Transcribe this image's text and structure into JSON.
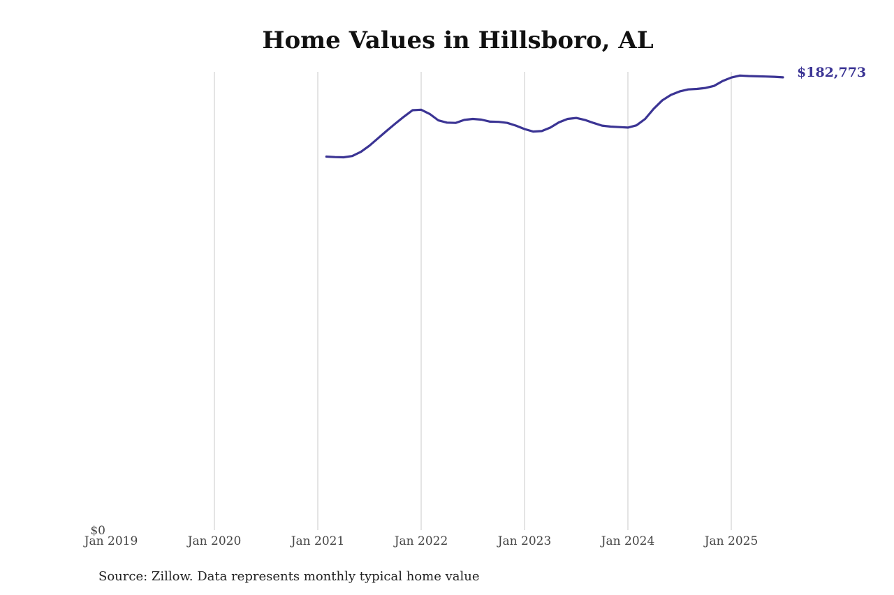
{
  "chart_data": {
    "type": "line",
    "title": "Home Values in Hillsboro, AL",
    "source": "Source: Zillow. Data represents monthly typical home value",
    "colors": {
      "line": "#3b3494",
      "grid": "#c8c8c8"
    },
    "y_axis": {
      "min": 0,
      "max": 185000,
      "tick_labels": [
        "$0"
      ],
      "tick_values": [
        0
      ]
    },
    "x_axis": {
      "tick_labels": [
        "Jan 2019",
        "Jan 2020",
        "Jan 2021",
        "Jan 2022",
        "Jan 2023",
        "Jan 2024",
        "Jan 2025"
      ],
      "tick_values": [
        "2019-01",
        "2020-01",
        "2021-01",
        "2022-01",
        "2023-01",
        "2024-01",
        "2025-01"
      ]
    },
    "grid": "vertical",
    "end_label": "$182,773",
    "series": [
      {
        "x": [
          "2021-02",
          "2021-03",
          "2021-04",
          "2021-05",
          "2021-06",
          "2021-07",
          "2021-08",
          "2021-09",
          "2021-10",
          "2021-11",
          "2021-12",
          "2022-01",
          "2022-02",
          "2022-03",
          "2022-04",
          "2022-05",
          "2022-06",
          "2022-07",
          "2022-08",
          "2022-09",
          "2022-10",
          "2022-11",
          "2022-12",
          "2023-01",
          "2023-02",
          "2023-03",
          "2023-04",
          "2023-05",
          "2023-06",
          "2023-07",
          "2023-08",
          "2023-09",
          "2023-10",
          "2023-11",
          "2023-12",
          "2024-01",
          "2024-02",
          "2024-03",
          "2024-04",
          "2024-05",
          "2024-06",
          "2024-07",
          "2024-08",
          "2024-09",
          "2024-10",
          "2024-11",
          "2024-12",
          "2025-01",
          "2025-02",
          "2025-03",
          "2025-04",
          "2025-05",
          "2025-06",
          "2025-07"
        ],
        "values": [
          150800,
          150600,
          150500,
          151000,
          152700,
          155200,
          158200,
          161200,
          164100,
          166900,
          169500,
          169700,
          168000,
          165400,
          164500,
          164400,
          165600,
          166000,
          165700,
          164900,
          164800,
          164400,
          163300,
          161900,
          160900,
          161100,
          162500,
          164600,
          166000,
          166400,
          165600,
          164400,
          163300,
          162900,
          162700,
          162500,
          163400,
          166000,
          170100,
          173500,
          175700,
          177100,
          177900,
          178100,
          178500,
          179300,
          181300,
          182700,
          183500,
          183300,
          183200,
          183100,
          183000,
          182773
        ]
      }
    ]
  }
}
